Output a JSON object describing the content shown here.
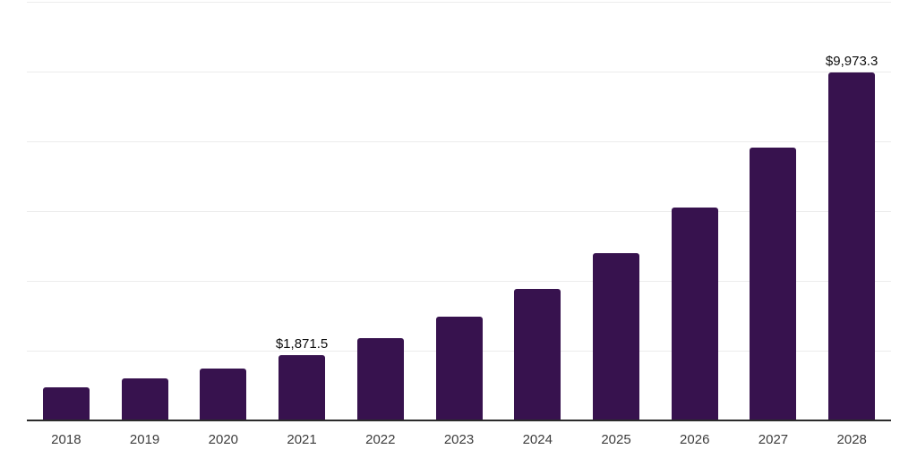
{
  "chart_data": {
    "type": "bar",
    "title": "",
    "xlabel": "",
    "ylabel": "",
    "categories": [
      "2018",
      "2019",
      "2020",
      "2021",
      "2022",
      "2023",
      "2024",
      "2025",
      "2026",
      "2027",
      "2028"
    ],
    "values": [
      955,
      1205,
      1490,
      1871.5,
      2350,
      2980,
      3775,
      4795,
      6110,
      7810,
      9973.3
    ],
    "value_labels": [
      "",
      "",
      "",
      "$1,871.5",
      "",
      "",
      "",
      "",
      "",
      "",
      "$9,973.3"
    ],
    "ylim": [
      0,
      12000
    ],
    "y_gridline_step": 2000,
    "grid": "horizontal",
    "legend": "none",
    "colors": {
      "bar": "#37124e",
      "axis_line": "#2b2b2b",
      "gridline": "#ececec",
      "tick_label": "#3d3d3d",
      "value_label": "#0d0d0d",
      "background": "#ffffff"
    }
  }
}
